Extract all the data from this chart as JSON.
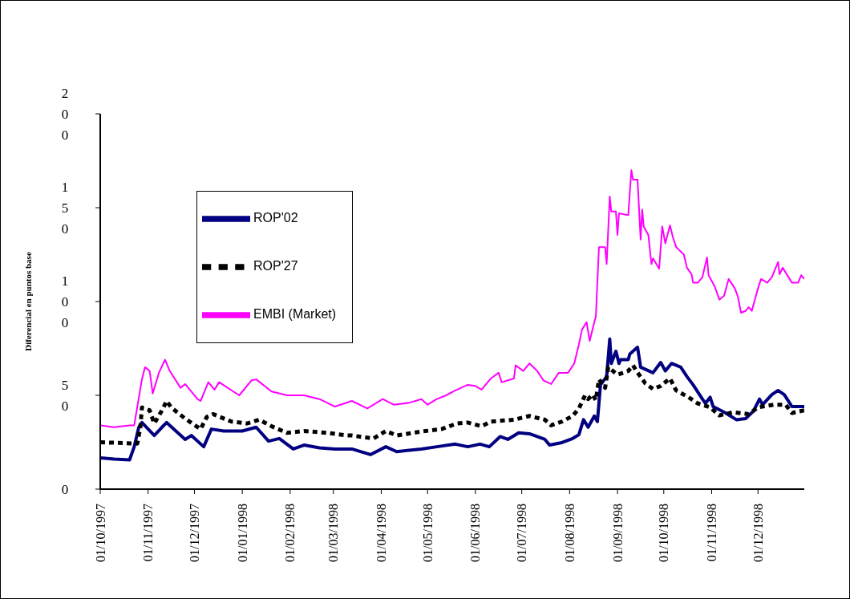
{
  "chart_data": {
    "type": "line",
    "ylabel": "Diferencial en puntos base",
    "xlim": [
      "1997-10-01",
      "1998-12-31"
    ],
    "ylim": [
      0,
      200
    ],
    "yticks": [
      0,
      50,
      100,
      150,
      200
    ],
    "xticks": [
      {
        "value": "1997-10-01",
        "label": "01/10/1997"
      },
      {
        "value": "1997-11-01",
        "label": "01/11/1997"
      },
      {
        "value": "1997-12-01",
        "label": "01/12/1997"
      },
      {
        "value": "1998-01-01",
        "label": "01/01/1998"
      },
      {
        "value": "1998-02-01",
        "label": "01/02/1998"
      },
      {
        "value": "1998-03-01",
        "label": "01/03/1998"
      },
      {
        "value": "1998-04-01",
        "label": "01/04/1998"
      },
      {
        "value": "1998-05-01",
        "label": "01/05/1998"
      },
      {
        "value": "1998-06-01",
        "label": "01/06/1998"
      },
      {
        "value": "1998-07-01",
        "label": "01/07/1998"
      },
      {
        "value": "1998-08-01",
        "label": "01/08/1998"
      },
      {
        "value": "1998-09-01",
        "label": "01/09/1998"
      },
      {
        "value": "1998-10-01",
        "label": "01/10/1998"
      },
      {
        "value": "1998-11-01",
        "label": "01/11/1998"
      },
      {
        "value": "1998-12-01",
        "label": "01/12/1998"
      }
    ],
    "grid": false,
    "legend": "top left",
    "marker": "none",
    "series": [
      {
        "name": "ROP'02",
        "color": "#000080",
        "line_style": "solid",
        "x": [
          "1997-10-01",
          "1997-10-10",
          "1997-10-20",
          "1997-10-23",
          "1997-10-26",
          "1997-10-28",
          "1997-11-05",
          "1997-11-10",
          "1997-11-13",
          "1997-11-25",
          "1997-11-29",
          "1997-12-07",
          "1997-12-12",
          "1997-12-20",
          "1998-01-01",
          "1998-01-10",
          "1998-01-18",
          "1998-01-25",
          "1998-02-03",
          "1998-02-10",
          "1998-02-20",
          "1998-03-02",
          "1998-03-13",
          "1998-03-25",
          "1998-04-04",
          "1998-04-11",
          "1998-04-27",
          "1998-05-07",
          "1998-05-19",
          "1998-05-27",
          "1998-06-04",
          "1998-06-10",
          "1998-06-17",
          "1998-06-22",
          "1998-06-29",
          "1998-07-06",
          "1998-07-16",
          "1998-07-19",
          "1998-07-27",
          "1998-08-03",
          "1998-08-07",
          "1998-08-10",
          "1998-08-13",
          "1998-08-17",
          "1998-08-19",
          "1998-08-21",
          "1998-08-25",
          "1998-08-27",
          "1998-08-28",
          "1998-08-31",
          "1998-09-02",
          "1998-09-03",
          "1998-09-08",
          "1998-09-09",
          "1998-09-14",
          "1998-09-16",
          "1998-09-24",
          "1998-09-29",
          "1998-10-02",
          "1998-10-06",
          "1998-10-12",
          "1998-10-16",
          "1998-10-20",
          "1998-10-26",
          "1998-10-28",
          "1998-10-31",
          "1998-11-02",
          "1998-11-10",
          "1998-11-17",
          "1998-11-23",
          "1998-11-28",
          "1998-12-02",
          "1998-12-04",
          "1998-12-10",
          "1998-12-14",
          "1998-12-18",
          "1998-12-23",
          "1998-12-31"
        ],
        "values": [
          16.7,
          16,
          15.6,
          22.6,
          33,
          35.5,
          28.6,
          33,
          35.5,
          26.5,
          28.6,
          22.6,
          32,
          31,
          31,
          33,
          25.6,
          27,
          21.4,
          23.5,
          22,
          21.4,
          21.4,
          18.4,
          22.6,
          20,
          21.4,
          22.6,
          24,
          22.6,
          24,
          22.6,
          28,
          26.5,
          30,
          29.5,
          26.5,
          23.5,
          24.8,
          27,
          29,
          37,
          33,
          39,
          36,
          55.6,
          60,
          80,
          67,
          73.5,
          67,
          69,
          69,
          72,
          75.6,
          65,
          62,
          67.5,
          63,
          67,
          65,
          60,
          55.6,
          48,
          45.7,
          49,
          44,
          40.6,
          37,
          37.6,
          41.5,
          48,
          45,
          50.4,
          52.6,
          50.4,
          44,
          44
        ]
      },
      {
        "name": "ROP'27",
        "color": "#000000",
        "line_style": "dashed",
        "x": [
          "1997-10-01",
          "1997-10-25",
          "1997-10-27",
          "1997-10-28",
          "1997-11-02",
          "1997-11-05",
          "1997-11-10",
          "1997-11-13",
          "1997-11-16",
          "1997-11-25",
          "1997-12-05",
          "1997-12-09",
          "1997-12-13",
          "1997-12-25",
          "1998-01-04",
          "1998-01-12",
          "1998-01-20",
          "1998-01-30",
          "1998-02-10",
          "1998-02-25",
          "1998-03-10",
          "1998-03-13",
          "1998-03-27",
          "1998-04-04",
          "1998-04-11",
          "1998-04-27",
          "1998-05-10",
          "1998-05-20",
          "1998-05-27",
          "1998-06-05",
          "1998-06-11",
          "1998-06-26",
          "1998-07-06",
          "1998-07-16",
          "1998-07-20",
          "1998-07-27",
          "1998-08-03",
          "1998-08-07",
          "1998-08-11",
          "1998-08-13",
          "1998-08-16",
          "1998-08-18",
          "1998-08-20",
          "1998-08-24",
          "1998-08-26",
          "1998-09-01",
          "1998-09-08",
          "1998-09-11",
          "1998-09-15",
          "1998-09-19",
          "1998-09-24",
          "1998-09-29",
          "1998-10-05",
          "1998-10-09",
          "1998-10-17",
          "1998-10-23",
          "1998-10-31",
          "1998-11-06",
          "1998-11-15",
          "1998-11-25",
          "1998-12-01",
          "1998-12-11",
          "1998-12-19",
          "1998-12-23",
          "1998-12-31"
        ],
        "values": [
          25,
          24.3,
          33,
          43.5,
          42,
          35,
          42,
          47,
          43.5,
          37.6,
          32,
          38.5,
          40,
          36,
          35,
          37,
          33.5,
          30,
          31,
          30,
          28.6,
          28.6,
          27,
          31,
          28.6,
          30.7,
          32,
          35,
          35.5,
          33.5,
          36,
          37,
          39,
          37,
          34,
          36,
          39,
          43,
          50,
          48,
          50.4,
          47.4,
          58.5,
          54,
          65,
          61,
          63,
          66,
          61,
          56.4,
          53.4,
          55,
          59,
          52.6,
          49,
          45.7,
          43.6,
          39.3,
          41,
          40,
          43.6,
          45,
          45,
          40.6,
          42
        ]
      },
      {
        "name": "EMBI (Market)",
        "color": "#ff00ff",
        "line_style": "solid",
        "x": [
          "1997-10-01",
          "1997-10-10",
          "1997-10-20",
          "1997-10-23",
          "1997-10-28",
          "1997-10-30",
          "1997-11-02",
          "1997-11-04",
          "1997-11-08",
          "1997-11-12",
          "1997-11-15",
          "1997-11-22",
          "1997-11-25",
          "1997-12-03",
          "1997-12-05",
          "1997-12-10",
          "1997-12-14",
          "1997-12-17",
          "1997-12-30",
          "1998-01-07",
          "1998-01-10",
          "1998-01-20",
          "1998-01-30",
          "1998-02-10",
          "1998-02-20",
          "1998-03-02",
          "1998-03-13",
          "1998-03-23",
          "1998-04-02",
          "1998-04-09",
          "1998-04-19",
          "1998-04-27",
          "1998-05-01",
          "1998-05-07",
          "1998-05-13",
          "1998-05-19",
          "1998-05-27",
          "1998-06-01",
          "1998-06-05",
          "1998-06-11",
          "1998-06-16",
          "1998-06-18",
          "1998-06-26",
          "1998-06-27",
          "1998-07-02",
          "1998-07-06",
          "1998-07-11",
          "1998-07-15",
          "1998-07-20",
          "1998-07-25",
          "1998-07-31",
          "1998-08-04",
          "1998-08-07",
          "1998-08-09",
          "1998-08-12",
          "1998-08-14",
          "1998-08-17",
          "1998-08-18",
          "1998-08-20",
          "1998-08-24",
          "1998-08-25",
          "1998-08-27",
          "1998-08-28",
          "1998-08-31",
          "1998-09-01",
          "1998-09-02",
          "1998-09-08",
          "1998-09-10",
          "1998-09-11",
          "1998-09-14",
          "1998-09-16",
          "1998-09-17",
          "1998-09-18",
          "1998-09-21",
          "1998-09-23",
          "1998-09-24",
          "1998-09-28",
          "1998-09-30",
          "1998-10-02",
          "1998-10-05",
          "1998-10-07",
          "1998-10-09",
          "1998-10-14",
          "1998-10-16",
          "1998-10-19",
          "1998-10-20",
          "1998-10-23",
          "1998-10-26",
          "1998-10-29",
          "1998-10-30",
          "1998-11-03",
          "1998-11-06",
          "1998-11-09",
          "1998-11-12",
          "1998-11-16",
          "1998-11-18",
          "1998-11-20",
          "1998-11-23",
          "1998-11-25",
          "1998-11-27",
          "1998-11-29",
          "1998-12-01",
          "1998-12-03",
          "1998-12-07",
          "1998-12-10",
          "1998-12-14",
          "1998-12-15",
          "1998-12-17",
          "1998-12-23",
          "1998-12-27",
          "1998-12-29",
          "1998-12-31"
        ],
        "values": [
          34,
          33,
          34,
          34,
          58.5,
          65,
          63,
          51,
          62,
          69,
          63,
          54,
          56,
          48,
          47,
          57,
          53,
          57,
          50,
          58,
          58.5,
          52,
          50,
          50,
          48,
          44,
          47,
          43,
          48,
          45,
          46,
          48,
          45,
          48,
          50,
          52.6,
          55.6,
          55,
          53,
          59,
          62,
          57,
          59,
          66,
          63,
          67,
          63,
          58,
          56,
          62,
          62,
          67,
          77,
          85,
          89,
          79,
          89,
          92,
          129,
          129,
          120,
          156,
          148,
          148,
          135.5,
          147,
          146,
          170,
          165,
          165,
          133,
          149,
          140,
          135.5,
          120,
          123,
          117.5,
          140,
          131,
          140.6,
          134,
          129,
          125,
          118,
          114.5,
          110,
          110,
          113,
          123.5,
          114,
          108,
          101,
          103,
          112,
          107,
          102.6,
          94,
          95,
          97,
          95,
          101,
          107,
          112,
          110,
          113,
          121,
          114.5,
          118,
          110,
          110,
          114,
          112
        ]
      }
    ]
  }
}
